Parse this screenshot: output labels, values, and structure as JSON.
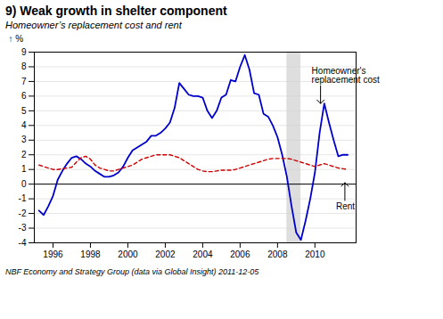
{
  "chart_data": {
    "type": "line",
    "title": "9) Weak growth in shelter component",
    "subtitle": "Homeowner’s replacement cost and rent",
    "ylabel": "%",
    "footnote": "NBF Economy and Strategy Group (data via Global Insight) 2011-12-05",
    "xlim": [
      1995.0,
      2012.2
    ],
    "xticks": [
      1996,
      1998,
      2000,
      2002,
      2004,
      2006,
      2008,
      2010
    ],
    "ylim": [
      -4,
      9
    ],
    "yticks": [
      -4,
      -3,
      -2,
      -1,
      0,
      1,
      2,
      3,
      4,
      5,
      6,
      7,
      8,
      9
    ],
    "grid": true,
    "shade": [
      2008.5,
      2009.25
    ],
    "x": [
      1995.25,
      1995.5,
      1995.75,
      1996.0,
      1996.25,
      1996.5,
      1996.75,
      1997.0,
      1997.25,
      1997.5,
      1997.75,
      1998.0,
      1998.25,
      1998.5,
      1998.75,
      1999.0,
      1999.25,
      1999.5,
      1999.75,
      2000.0,
      2000.25,
      2000.5,
      2000.75,
      2001.0,
      2001.25,
      2001.5,
      2001.75,
      2002.0,
      2002.25,
      2002.5,
      2002.75,
      2003.0,
      2003.25,
      2003.5,
      2003.75,
      2004.0,
      2004.25,
      2004.5,
      2004.75,
      2005.0,
      2005.25,
      2005.5,
      2005.75,
      2006.0,
      2006.25,
      2006.5,
      2006.75,
      2007.0,
      2007.25,
      2007.5,
      2007.75,
      2008.0,
      2008.25,
      2008.5,
      2008.75,
      2009.0,
      2009.25,
      2009.5,
      2009.75,
      2010.0,
      2010.25,
      2010.5,
      2010.75,
      2011.0,
      2011.25,
      2011.5,
      2011.75
    ],
    "series": [
      {
        "color": "#0000CC",
        "line_style": "solid",
        "values": [
          -1.8,
          -2.1,
          -1.5,
          -0.8,
          0.3,
          0.9,
          1.4,
          1.8,
          1.9,
          1.7,
          1.4,
          1.2,
          0.9,
          0.7,
          0.5,
          0.5,
          0.6,
          0.8,
          1.2,
          1.8,
          2.3,
          2.5,
          2.7,
          2.9,
          3.3,
          3.3,
          3.5,
          3.8,
          4.2,
          5.2,
          6.9,
          6.5,
          6.1,
          6.0,
          6.0,
          5.9,
          5.0,
          4.5,
          5.0,
          5.9,
          6.1,
          7.1,
          7.0,
          8.0,
          8.8,
          7.8,
          6.2,
          6.1,
          4.8,
          4.6,
          4.0,
          3.2,
          2.0,
          0.5,
          -1.5,
          -3.3,
          -3.8,
          -2.5,
          -1.0,
          0.8,
          3.5,
          5.5,
          4.2,
          3.0,
          1.9,
          2.0,
          2.0
        ]
      },
      {
        "color": "#CC0000",
        "line_style": "dashed",
        "values": [
          1.3,
          1.2,
          1.1,
          1.0,
          1.0,
          1.05,
          1.1,
          1.15,
          1.5,
          1.8,
          1.9,
          1.7,
          1.3,
          1.1,
          1.0,
          0.9,
          0.9,
          1.0,
          1.1,
          1.2,
          1.3,
          1.5,
          1.7,
          1.8,
          1.9,
          2.0,
          2.0,
          2.0,
          2.0,
          1.9,
          1.8,
          1.6,
          1.4,
          1.2,
          1.0,
          0.9,
          0.85,
          0.85,
          0.9,
          0.95,
          0.95,
          0.95,
          1.0,
          1.1,
          1.2,
          1.3,
          1.4,
          1.5,
          1.6,
          1.7,
          1.75,
          1.75,
          1.75,
          1.75,
          1.7,
          1.6,
          1.5,
          1.4,
          1.3,
          1.2,
          1.3,
          1.4,
          1.3,
          1.2,
          1.1,
          1.05,
          1.0
        ]
      }
    ],
    "annotations": [
      {
        "text": "Homeowner's\nreplacement cost",
        "x": 2010.3,
        "y": 5.5
      },
      {
        "text": "Rent",
        "x": 2011.6,
        "y": 0.1
      }
    ]
  }
}
